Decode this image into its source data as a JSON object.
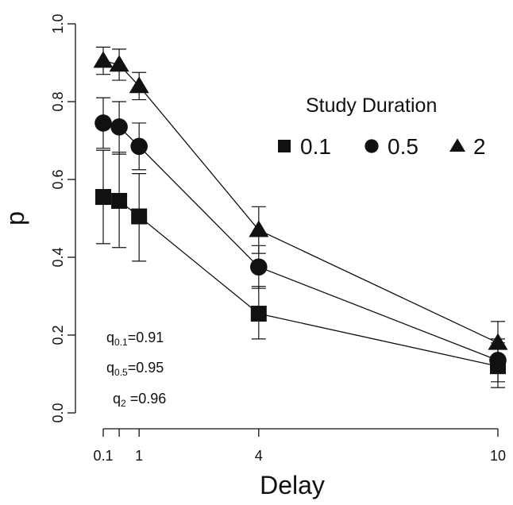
{
  "chart_data": {
    "type": "line",
    "xlabel": "Delay",
    "ylabel": "p",
    "xlim": [
      0.1,
      10
    ],
    "ylim": [
      0.0,
      1.0
    ],
    "x_ticks": [
      0.1,
      1,
      4,
      10
    ],
    "x_tick_labels": [
      "0.1",
      "1",
      "4",
      "10"
    ],
    "y_ticks": [
      0.0,
      0.2,
      0.4,
      0.6,
      0.8,
      1.0
    ],
    "y_tick_labels": [
      "0.0",
      "0.2",
      "0.4",
      "0.6",
      "0.8",
      "1.0"
    ],
    "x": [
      0.1,
      0.5,
      1,
      4,
      10
    ],
    "legend": {
      "title": "Study Duration",
      "position": "top-right",
      "entries": [
        {
          "label": "0.1",
          "marker": "square"
        },
        {
          "label": "0.5",
          "marker": "circle"
        },
        {
          "label": "2",
          "marker": "triangle"
        }
      ]
    },
    "series": [
      {
        "marker": "square",
        "values": [
          0.555,
          0.545,
          0.505,
          0.255,
          0.12
        ],
        "error_low": [
          0.435,
          0.425,
          0.39,
          0.19,
          0.065
        ],
        "error_high": [
          0.675,
          0.67,
          0.615,
          0.325,
          0.18
        ]
      },
      {
        "marker": "circle",
        "values": [
          0.745,
          0.735,
          0.685,
          0.375,
          0.135
        ],
        "error_low": [
          0.68,
          0.665,
          0.625,
          0.32,
          0.08
        ],
        "error_high": [
          0.81,
          0.8,
          0.745,
          0.43,
          0.19
        ]
      },
      {
        "marker": "triangle",
        "values": [
          0.905,
          0.895,
          0.84,
          0.47,
          0.18
        ],
        "error_low": [
          0.87,
          0.855,
          0.805,
          0.41,
          0.125
        ],
        "error_high": [
          0.94,
          0.935,
          0.875,
          0.53,
          0.235
        ]
      }
    ],
    "annotations": [
      {
        "base": "q",
        "sub": "0.1",
        "text": "=0.91"
      },
      {
        "base": "q",
        "sub": "0.5",
        "text": "=0.95"
      },
      {
        "base": "q",
        "sub": "2",
        "text": " =0.96"
      }
    ]
  }
}
